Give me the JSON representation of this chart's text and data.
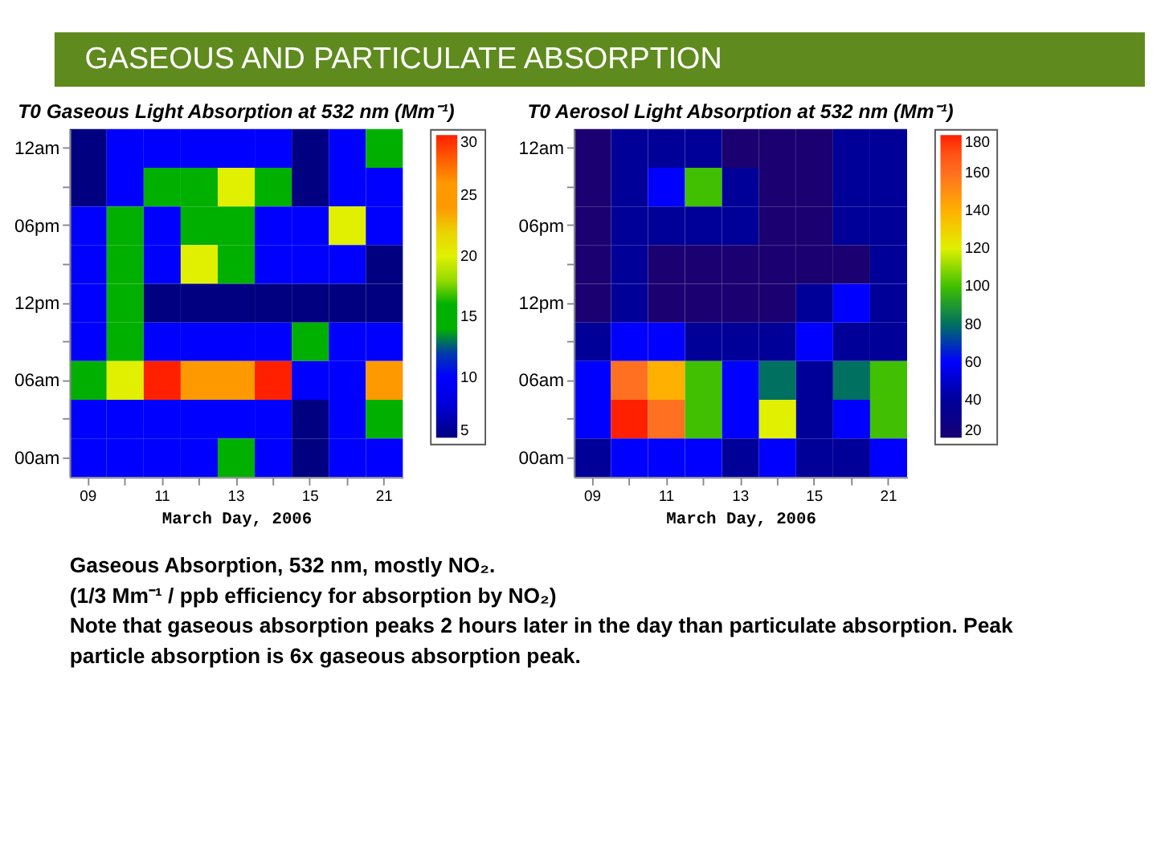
{
  "chart_data": [
    {
      "type": "other",
      "title": "GASEOUS AND PARTICULATE ABSORPTION",
      "annotations": [
        "Gaseous Absorption, 532 nm, mostly NO₂.",
        "(1/3 Mm⁻¹ / ppb efficiency for absorption by NO₂)",
        "Note that gaseous absorption peaks 2 hours later in the day than particulate absorption.  Peak particle absorption is 6x gaseous absorption peak."
      ]
    },
    {
      "type": "heatmap",
      "title": "T0 Gaseous Light Absorption at 532 nm (Mm⁻¹)",
      "xlabel": "March Day, 2006",
      "clim": [
        5,
        30
      ],
      "categories": [
        "09",
        null,
        "11",
        null,
        "13",
        null,
        "15",
        null,
        "21"
      ],
      "y_categories": [
        "12am",
        null,
        "06pm",
        null,
        "12pm",
        null,
        "06am",
        null,
        "00am"
      ],
      "cticks": [
        5,
        10,
        15,
        20,
        25,
        30
      ],
      "colors": [
        "#000080",
        "#0000ff",
        "#00b000",
        "#e0f000",
        "#ff9900",
        "#ff2000"
      ],
      "cells": [
        [
          5,
          10,
          10,
          10,
          10,
          10,
          5,
          10,
          15
        ],
        [
          5,
          10,
          15,
          15,
          20,
          15,
          5,
          10,
          10
        ],
        [
          10,
          15,
          10,
          15,
          15,
          10,
          10,
          20,
          10
        ],
        [
          10,
          15,
          10,
          20,
          15,
          10,
          10,
          10,
          5
        ],
        [
          10,
          15,
          5,
          5,
          5,
          5,
          5,
          5,
          5
        ],
        [
          10,
          15,
          10,
          10,
          10,
          10,
          15,
          10,
          10
        ],
        [
          15,
          20,
          30,
          25,
          25,
          30,
          10,
          10,
          25
        ],
        [
          10,
          10,
          10,
          10,
          10,
          10,
          5,
          10,
          15
        ],
        [
          10,
          10,
          10,
          10,
          15,
          10,
          5,
          10,
          10
        ]
      ]
    },
    {
      "type": "heatmap",
      "title": "T0 Aerosol Light Absorption at 532 nm (Mm⁻¹)",
      "xlabel": "March Day, 2006",
      "clim": [
        20,
        180
      ],
      "categories": [
        "09",
        null,
        "11",
        null,
        "13",
        null,
        "15",
        null,
        "21"
      ],
      "y_categories": [
        "12am",
        null,
        "06pm",
        null,
        "12pm",
        null,
        "06am",
        null,
        "00am"
      ],
      "cticks": [
        20,
        40,
        60,
        80,
        100,
        120,
        140,
        160,
        180
      ],
      "colors": [
        "#1a0070",
        "#000099",
        "#0000ff",
        "#007060",
        "#40c000",
        "#e0f000",
        "#ffb000",
        "#ff7020",
        "#ff2000"
      ],
      "cells": [
        [
          20,
          40,
          40,
          40,
          20,
          20,
          20,
          40,
          40
        ],
        [
          20,
          40,
          60,
          100,
          40,
          20,
          20,
          40,
          40
        ],
        [
          20,
          40,
          40,
          40,
          40,
          20,
          20,
          40,
          40
        ],
        [
          20,
          40,
          20,
          20,
          20,
          20,
          20,
          20,
          40
        ],
        [
          20,
          40,
          20,
          20,
          20,
          20,
          40,
          60,
          40
        ],
        [
          40,
          60,
          60,
          40,
          40,
          40,
          60,
          40,
          40
        ],
        [
          60,
          160,
          140,
          100,
          60,
          80,
          40,
          80,
          100
        ],
        [
          60,
          180,
          160,
          100,
          60,
          120,
          40,
          60,
          100
        ],
        [
          40,
          60,
          60,
          60,
          40,
          60,
          40,
          40,
          60
        ]
      ]
    }
  ]
}
